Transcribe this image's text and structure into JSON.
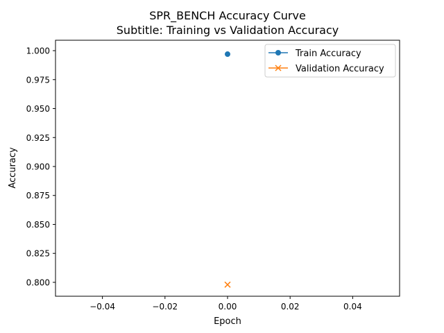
{
  "chart_data": {
    "type": "line",
    "title": "SPR_BENCH Accuracy Curve",
    "subtitle": "Subtitle: Training vs Validation Accuracy",
    "xlabel": "Epoch",
    "ylabel": "Accuracy",
    "xlim": [
      -0.055,
      0.055
    ],
    "ylim": [
      0.788,
      1.009
    ],
    "xticks": [
      -0.04,
      -0.02,
      0.0,
      0.02,
      0.04
    ],
    "xtick_labels": [
      "−0.04",
      "−0.02",
      "0.00",
      "0.02",
      "0.04"
    ],
    "yticks": [
      0.8,
      0.825,
      0.85,
      0.875,
      0.9,
      0.925,
      0.95,
      0.975,
      1.0
    ],
    "ytick_labels": [
      "0.800",
      "0.825",
      "0.850",
      "0.875",
      "0.900",
      "0.925",
      "0.950",
      "0.975",
      "1.000"
    ],
    "grid": false,
    "legend_position": "top-right",
    "series": [
      {
        "name": "Train Accuracy",
        "marker": "circle",
        "color": "#1f77b4",
        "x": [
          0
        ],
        "y": [
          0.997
        ]
      },
      {
        "name": "Validation Accuracy",
        "marker": "x",
        "color": "#ff7f0e",
        "x": [
          0
        ],
        "y": [
          0.798
        ]
      }
    ]
  }
}
